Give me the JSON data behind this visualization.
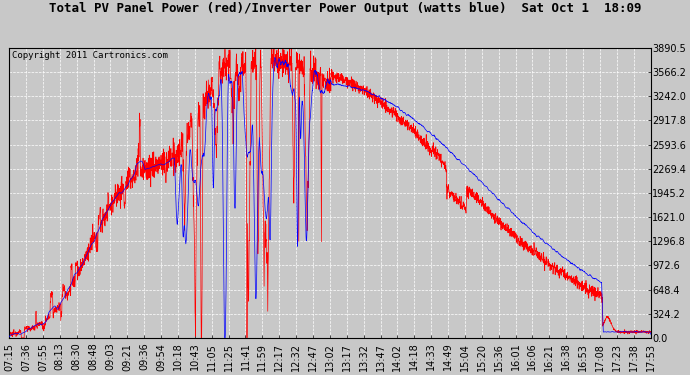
{
  "title": "Total PV Panel Power (red)/Inverter Power Output (watts blue)  Sat Oct 1  18:09",
  "copyright_text": "Copyright 2011 Cartronics.com",
  "background_color": "#c8c8c8",
  "plot_bg_color": "#c8c8c8",
  "grid_color": "#ffffff",
  "yticks": [
    0.0,
    324.2,
    648.4,
    972.6,
    1296.8,
    1621.0,
    1945.2,
    2269.4,
    2593.6,
    2917.8,
    3242.0,
    3566.2,
    3890.5
  ],
  "ymax": 3890.5,
  "ymin": 0.0,
  "x_labels": [
    "07:15",
    "07:36",
    "07:55",
    "08:13",
    "08:30",
    "08:48",
    "09:03",
    "09:21",
    "09:36",
    "09:54",
    "10:18",
    "10:43",
    "11:05",
    "11:25",
    "11:41",
    "11:59",
    "12:17",
    "12:32",
    "12:47",
    "13:02",
    "13:17",
    "13:32",
    "13:47",
    "14:02",
    "14:18",
    "14:33",
    "14:49",
    "15:04",
    "15:20",
    "15:36",
    "16:01",
    "16:06",
    "16:21",
    "16:38",
    "16:53",
    "17:08",
    "17:23",
    "17:38",
    "17:53"
  ],
  "red_color": "#ff0000",
  "blue_color": "#0000ff",
  "title_fontsize": 9,
  "axis_fontsize": 7,
  "copyright_fontsize": 6.5
}
